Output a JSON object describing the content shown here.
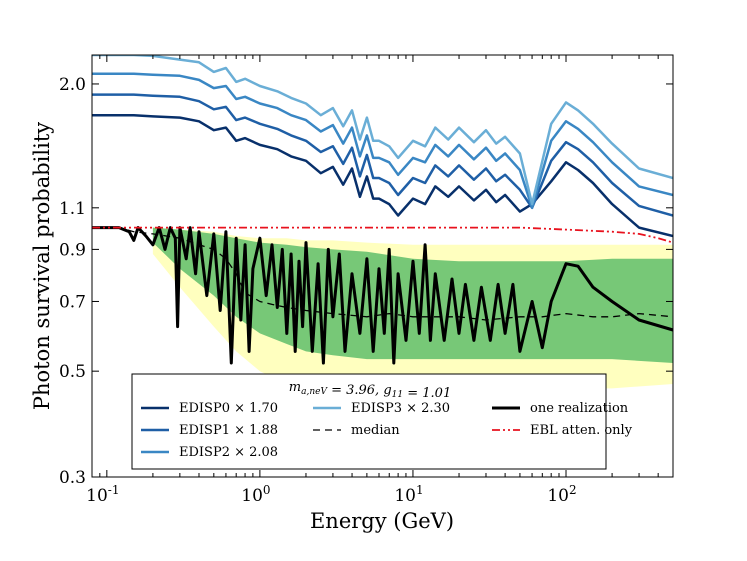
{
  "chart_data": {
    "type": "line",
    "title": "",
    "xlabel": "Energy (GeV)",
    "ylabel": "Photon survival probability",
    "xscale": "log",
    "yscale": "log",
    "xlim": [
      0.08,
      500
    ],
    "ylim": [
      0.3,
      2.3
    ],
    "x_ticks": [
      {
        "value": 0.1,
        "base": "10",
        "exp": "-1"
      },
      {
        "value": 1,
        "base": "10",
        "exp": "0"
      },
      {
        "value": 10,
        "base": "10",
        "exp": "1"
      },
      {
        "value": 100,
        "base": "10",
        "exp": "2"
      }
    ],
    "y_ticks": [
      {
        "value": 0.3,
        "label": "0.3"
      },
      {
        "value": 0.5,
        "label": "0.5"
      },
      {
        "value": 0.7,
        "label": "0.7"
      },
      {
        "value": 0.9,
        "label": "0.9"
      },
      {
        "value": 1.1,
        "label": "1.1"
      },
      {
        "value": 2.0,
        "label": "2.0"
      }
    ],
    "grid": false,
    "legend": {
      "placement": "bottom-center",
      "title": "m_{a,neV} = 3.96, g_{11} = 1.01",
      "columns": 3
    },
    "bands": [
      {
        "name": "95% band",
        "color": "#ffffbf",
        "x": [
          0.2,
          0.3,
          0.5,
          0.7,
          1,
          1.5,
          2,
          3,
          5,
          10,
          20,
          50,
          100,
          200,
          500
        ],
        "lower": [
          0.88,
          0.75,
          0.62,
          0.55,
          0.5,
          0.47,
          0.46,
          0.46,
          0.45,
          0.45,
          0.45,
          0.45,
          0.46,
          0.46,
          0.47
        ],
        "upper": [
          1.0,
          0.99,
          0.98,
          0.96,
          0.95,
          0.95,
          0.94,
          0.94,
          0.93,
          0.92,
          0.92,
          0.92,
          0.92,
          0.92,
          0.92
        ]
      },
      {
        "name": "68% band",
        "color": "#77c877",
        "x": [
          0.2,
          0.3,
          0.5,
          0.7,
          1,
          1.5,
          2,
          3,
          5,
          10,
          20,
          50,
          100,
          200,
          500
        ],
        "lower": [
          0.93,
          0.82,
          0.72,
          0.65,
          0.6,
          0.57,
          0.55,
          0.54,
          0.53,
          0.53,
          0.53,
          0.53,
          0.53,
          0.53,
          0.52
        ],
        "upper": [
          1.0,
          0.99,
          0.97,
          0.95,
          0.93,
          0.92,
          0.91,
          0.9,
          0.89,
          0.86,
          0.85,
          0.85,
          0.85,
          0.86,
          0.86
        ]
      }
    ],
    "series": [
      {
        "name": "EDISP0 × 1.70",
        "color": "#08306b",
        "width": 2.5,
        "x": [
          0.08,
          0.15,
          0.2,
          0.3,
          0.4,
          0.5,
          0.6,
          0.7,
          0.8,
          1,
          1.3,
          1.6,
          2,
          2.5,
          3,
          3.5,
          4,
          4.5,
          5,
          5.5,
          6,
          7,
          8,
          10,
          12,
          14,
          17,
          20,
          25,
          30,
          35,
          40,
          50,
          60,
          80,
          100,
          120,
          150,
          200,
          300,
          500
        ],
        "y": [
          1.72,
          1.72,
          1.71,
          1.7,
          1.67,
          1.6,
          1.62,
          1.52,
          1.54,
          1.49,
          1.46,
          1.41,
          1.38,
          1.3,
          1.34,
          1.23,
          1.33,
          1.16,
          1.28,
          1.15,
          1.15,
          1.12,
          1.06,
          1.15,
          1.12,
          1.22,
          1.16,
          1.22,
          1.14,
          1.2,
          1.13,
          1.17,
          1.08,
          1.12,
          1.25,
          1.37,
          1.32,
          1.24,
          1.12,
          1.0,
          0.96
        ]
      },
      {
        "name": "EDISP1 × 1.88",
        "color": "#1f5fa6",
        "width": 2.5,
        "x": [
          0.08,
          0.15,
          0.2,
          0.3,
          0.4,
          0.5,
          0.6,
          0.7,
          0.8,
          1,
          1.3,
          1.6,
          2,
          2.5,
          3,
          3.5,
          4,
          4.5,
          5,
          5.5,
          6,
          7,
          8,
          10,
          12,
          14,
          17,
          20,
          25,
          30,
          35,
          40,
          50,
          60,
          80,
          100,
          120,
          150,
          200,
          300,
          500
        ],
        "y": [
          1.9,
          1.9,
          1.89,
          1.88,
          1.84,
          1.77,
          1.79,
          1.68,
          1.7,
          1.65,
          1.61,
          1.56,
          1.52,
          1.44,
          1.48,
          1.36,
          1.47,
          1.28,
          1.42,
          1.27,
          1.27,
          1.24,
          1.17,
          1.27,
          1.24,
          1.35,
          1.28,
          1.35,
          1.26,
          1.33,
          1.25,
          1.29,
          1.2,
          1.1,
          1.38,
          1.51,
          1.46,
          1.37,
          1.24,
          1.11,
          1.06
        ]
      },
      {
        "name": "EDISP2 × 2.08",
        "color": "#3a87c4",
        "width": 2.5,
        "x": [
          0.08,
          0.15,
          0.2,
          0.3,
          0.4,
          0.5,
          0.6,
          0.7,
          0.8,
          1,
          1.3,
          1.6,
          2,
          2.5,
          3,
          3.5,
          4,
          4.5,
          5,
          5.5,
          6,
          7,
          8,
          10,
          12,
          14,
          17,
          20,
          25,
          30,
          35,
          40,
          50,
          60,
          80,
          100,
          120,
          150,
          200,
          300,
          500
        ],
        "y": [
          2.1,
          2.1,
          2.09,
          2.08,
          2.04,
          1.96,
          1.98,
          1.86,
          1.88,
          1.82,
          1.78,
          1.72,
          1.68,
          1.59,
          1.64,
          1.5,
          1.62,
          1.41,
          1.56,
          1.4,
          1.4,
          1.37,
          1.29,
          1.4,
          1.37,
          1.49,
          1.41,
          1.49,
          1.39,
          1.47,
          1.38,
          1.43,
          1.32,
          1.1,
          1.52,
          1.67,
          1.61,
          1.51,
          1.37,
          1.22,
          1.17
        ]
      },
      {
        "name": "EDISP3 × 2.30",
        "color": "#6aaed6",
        "width": 2.5,
        "x": [
          0.08,
          0.15,
          0.2,
          0.3,
          0.4,
          0.5,
          0.6,
          0.7,
          0.8,
          1,
          1.3,
          1.6,
          2,
          2.5,
          3,
          3.5,
          4,
          4.5,
          5,
          5.5,
          6,
          7,
          8,
          10,
          12,
          14,
          17,
          20,
          25,
          30,
          35,
          40,
          50,
          60,
          80,
          100,
          120,
          150,
          200,
          300,
          500
        ],
        "y": [
          2.3,
          2.3,
          2.29,
          2.25,
          2.22,
          2.12,
          2.16,
          2.02,
          2.05,
          1.98,
          1.93,
          1.87,
          1.82,
          1.72,
          1.78,
          1.63,
          1.76,
          1.53,
          1.7,
          1.52,
          1.52,
          1.48,
          1.4,
          1.52,
          1.48,
          1.62,
          1.53,
          1.62,
          1.51,
          1.6,
          1.5,
          1.55,
          1.43,
          1.12,
          1.65,
          1.83,
          1.76,
          1.65,
          1.5,
          1.33,
          1.27
        ]
      },
      {
        "name": "median",
        "color": "#000000",
        "width": 1.3,
        "dash": "7,5",
        "x": [
          0.08,
          0.12,
          0.15,
          0.2,
          0.3,
          0.4,
          0.5,
          0.6,
          0.7,
          0.8,
          1,
          1.2,
          1.5,
          2,
          3,
          5,
          7,
          10,
          15,
          20,
          30,
          50,
          70,
          100,
          150,
          200,
          300,
          500
        ],
        "y": [
          1.0,
          1.0,
          0.98,
          0.97,
          0.95,
          0.92,
          0.9,
          0.86,
          0.8,
          0.73,
          0.7,
          0.69,
          0.68,
          0.67,
          0.66,
          0.65,
          0.66,
          0.65,
          0.65,
          0.65,
          0.64,
          0.65,
          0.65,
          0.66,
          0.65,
          0.65,
          0.66,
          0.65
        ]
      },
      {
        "name": "one realization",
        "color": "#000000",
        "width": 3,
        "x": [
          0.08,
          0.12,
          0.14,
          0.15,
          0.16,
          0.18,
          0.2,
          0.22,
          0.24,
          0.26,
          0.28,
          0.29,
          0.3,
          0.33,
          0.35,
          0.38,
          0.4,
          0.45,
          0.5,
          0.55,
          0.6,
          0.65,
          0.7,
          0.75,
          0.8,
          0.85,
          0.9,
          1.0,
          1.1,
          1.2,
          1.3,
          1.4,
          1.5,
          1.6,
          1.7,
          1.8,
          1.9,
          2.0,
          2.2,
          2.4,
          2.6,
          2.8,
          3.0,
          3.3,
          3.6,
          4.0,
          4.5,
          5.0,
          5.5,
          6.0,
          6.5,
          7.0,
          7.5,
          8.0,
          9.0,
          10,
          11,
          12,
          13,
          14,
          16,
          18,
          20,
          22,
          25,
          28,
          32,
          36,
          40,
          45,
          50,
          60,
          70,
          80,
          100,
          120,
          150,
          200,
          300,
          500
        ],
        "y": [
          1.0,
          1.0,
          0.98,
          0.94,
          1.0,
          0.96,
          0.92,
          1.0,
          0.9,
          1.0,
          0.95,
          0.62,
          1.0,
          0.86,
          1.0,
          0.8,
          0.98,
          0.72,
          0.97,
          0.67,
          0.98,
          0.52,
          0.95,
          0.64,
          0.92,
          0.55,
          0.82,
          0.95,
          0.72,
          0.92,
          0.68,
          0.9,
          0.6,
          0.88,
          0.55,
          0.85,
          0.62,
          0.93,
          0.55,
          0.84,
          0.52,
          0.9,
          0.65,
          0.88,
          0.55,
          0.8,
          0.6,
          0.86,
          0.55,
          0.82,
          0.6,
          0.9,
          0.52,
          0.8,
          0.58,
          0.85,
          0.6,
          0.92,
          0.58,
          0.8,
          0.58,
          0.78,
          0.6,
          0.76,
          0.58,
          0.75,
          0.58,
          0.76,
          0.6,
          0.76,
          0.55,
          0.7,
          0.56,
          0.7,
          0.84,
          0.83,
          0.75,
          0.7,
          0.64,
          0.61
        ]
      },
      {
        "name": "EBL atten. only",
        "color": "#e8121e",
        "width": 1.8,
        "dash": "8,3,2,3,2,3",
        "x": [
          0.08,
          1,
          10,
          50,
          100,
          200,
          300,
          400,
          500
        ],
        "y": [
          1.0,
          1.0,
          1.0,
          1.0,
          0.99,
          0.98,
          0.97,
          0.95,
          0.93
        ]
      }
    ]
  },
  "legend_items": [
    {
      "label": "EDISP0 × 1.70",
      "color": "#08306b",
      "width": 2.5,
      "dash": ""
    },
    {
      "label": "EDISP3 × 2.30",
      "color": "#6aaed6",
      "width": 2.5,
      "dash": ""
    },
    {
      "label": "one realization",
      "color": "#000000",
      "width": 3,
      "dash": ""
    },
    {
      "label": "EDISP1 × 1.88",
      "color": "#1f5fa6",
      "width": 2.5,
      "dash": ""
    },
    {
      "label": "median",
      "color": "#000000",
      "width": 1.3,
      "dash": "7,5"
    },
    {
      "label": "EBL atten. only",
      "color": "#e8121e",
      "width": 1.8,
      "dash": "8,3,2,3,2,3"
    },
    {
      "label": "EDISP2 × 2.08",
      "color": "#3a87c4",
      "width": 2.5,
      "dash": ""
    }
  ]
}
